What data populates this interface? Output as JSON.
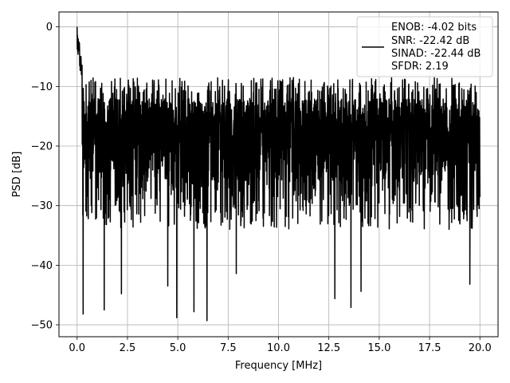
{
  "chart_data": {
    "type": "line",
    "title": "",
    "xlabel": "Frequency [MHz]",
    "ylabel": "PSD [dB]",
    "xlim": [
      -0.9,
      20.9
    ],
    "ylim": [
      -52,
      2.5
    ],
    "xticks": [
      0.0,
      2.5,
      5.0,
      7.5,
      10.0,
      12.5,
      15.0,
      17.5,
      20.0
    ],
    "xtick_labels": [
      "0.0",
      "2.5",
      "5.0",
      "7.5",
      "10.0",
      "12.5",
      "15.0",
      "17.5",
      "20.0"
    ],
    "yticks": [
      0,
      -10,
      -20,
      -30,
      -40,
      -50
    ],
    "ytick_labels": [
      "0",
      "−10",
      "−20",
      "−30",
      "−40",
      "−50"
    ],
    "grid": true,
    "legend_position": "upper right",
    "legend": {
      "lines": [
        "ENOB: -4.02 bits",
        "SNR: -22.42 dB",
        "SINAD: -22.44 dB",
        "SFDR: 2.19"
      ]
    },
    "series": [
      {
        "color": "#000000",
        "description": "noise-like power spectral density from 0 to 20 MHz; DC peak at 0 dB, floor fluctuating roughly between -50 and -8 dB",
        "x_range": [
          0,
          20
        ],
        "peak": {
          "x": 0.0,
          "y": 0.0
        },
        "envelope": {
          "upper": -8.5,
          "lower_typical": -32,
          "lower_extreme": -49.5
        },
        "notable_minima": [
          {
            "x": 0.3,
            "y": -48.2
          },
          {
            "x": 1.35,
            "y": -47.5
          },
          {
            "x": 2.2,
            "y": -44.8
          },
          {
            "x": 4.5,
            "y": -43.5
          },
          {
            "x": 4.95,
            "y": -48.8
          },
          {
            "x": 5.8,
            "y": -47.8
          },
          {
            "x": 6.45,
            "y": -49.3
          },
          {
            "x": 7.9,
            "y": -41.4
          },
          {
            "x": 12.8,
            "y": -45.6
          },
          {
            "x": 13.6,
            "y": -47.1
          },
          {
            "x": 14.1,
            "y": -44.4
          },
          {
            "x": 19.5,
            "y": -43.2
          }
        ]
      }
    ]
  }
}
